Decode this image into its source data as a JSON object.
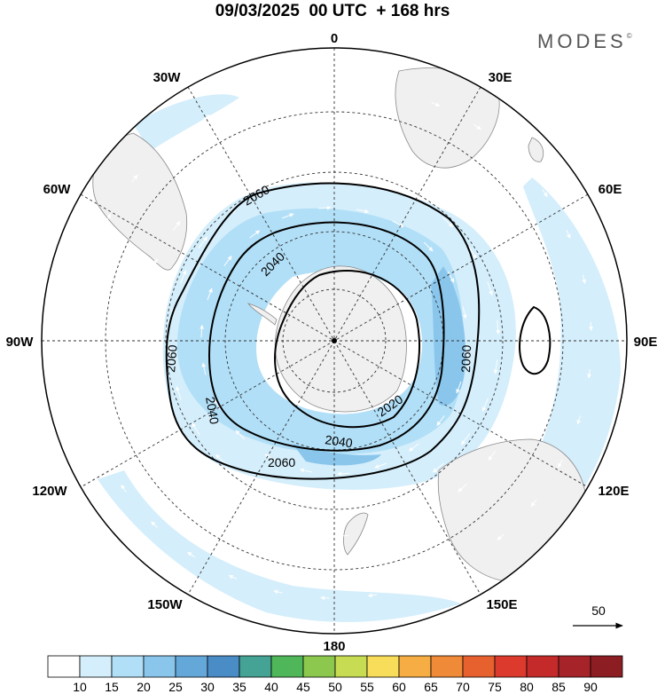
{
  "header": {
    "title": "09/03/2025  00 UTC  + 168 hrs",
    "brand": "MODES",
    "brand_mark": "©"
  },
  "map": {
    "projection": "south-polar-stereographic",
    "longitude_labels": [
      {
        "text": "0",
        "lon": 0
      },
      {
        "text": "30E",
        "lon": 30
      },
      {
        "text": "60E",
        "lon": 60
      },
      {
        "text": "90E",
        "lon": 90
      },
      {
        "text": "120E",
        "lon": 120
      },
      {
        "text": "150E",
        "lon": 150
      },
      {
        "text": "180",
        "lon": 180
      },
      {
        "text": "150W",
        "lon": -150
      },
      {
        "text": "120W",
        "lon": -120
      },
      {
        "text": "90W",
        "lon": -90
      },
      {
        "text": "60W",
        "lon": -60
      },
      {
        "text": "30W",
        "lon": -30
      }
    ],
    "contour_labels": [
      "2060",
      "2040",
      "2060",
      "2040",
      "2060",
      "2020",
      "2060",
      "2040",
      "2060"
    ],
    "contour_line_color": "#000000",
    "land_color": "#f0f0f0",
    "coastline_color": "#888888"
  },
  "vector_reference": {
    "value": "50"
  },
  "colorbar": {
    "labels": [
      "10",
      "15",
      "20",
      "25",
      "30",
      "35",
      "40",
      "45",
      "50",
      "55",
      "60",
      "65",
      "70",
      "75",
      "80",
      "85",
      "90"
    ],
    "colors": [
      "#ffffff",
      "#d4eefb",
      "#b1dff7",
      "#8ac6ec",
      "#64a8da",
      "#4a8dc6",
      "#44a394",
      "#4fb75a",
      "#8cc84d",
      "#c7dc53",
      "#f8dd5a",
      "#f5ad44",
      "#ef8a38",
      "#e7612f",
      "#dc3a2c",
      "#c42a2a",
      "#a7232a",
      "#8c1d23"
    ]
  }
}
